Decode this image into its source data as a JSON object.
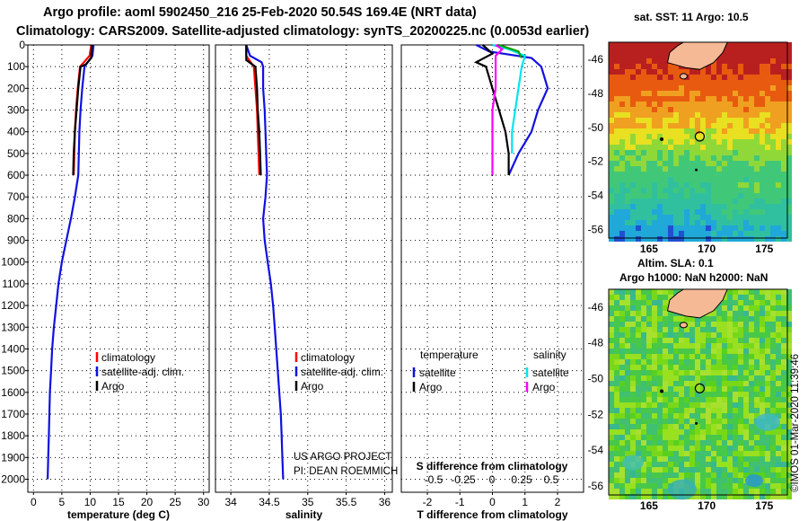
{
  "header": {
    "line1": "Argo profile: aoml 5902450_216 25-Feb-2020 50.54S 169.4E (NRT data)",
    "line2": "Climatology: CARS2009. Satellite-adjusted climatology: synTS_20200225.nc (0.0053d earlier)"
  },
  "colors": {
    "climatology": "#ff0000",
    "satellite": "#1010e0",
    "argo": "#000000",
    "sat_salinity": "#00e5ee",
    "argo_salinity": "#ff00ff",
    "land": "#f6b995"
  },
  "credit": "©IMOS 01-Mar-2020 11:39:46",
  "chart_data": [
    {
      "id": "temperature",
      "type": "line",
      "xlabel": "temperature (deg C)",
      "xlim": [
        -1,
        31
      ],
      "xticks": [
        "0",
        "5",
        "10",
        "15",
        "20",
        "25",
        "30"
      ],
      "xtick_values": [
        0,
        5,
        10,
        15,
        20,
        25,
        30
      ],
      "ylim": [
        0,
        2060
      ],
      "yticks": [
        "0",
        "100",
        "200",
        "300",
        "400",
        "500",
        "600",
        "700",
        "800",
        "900",
        "1000",
        "1100",
        "1200",
        "1300",
        "1400",
        "1500",
        "1600",
        "1700",
        "1800",
        "1900",
        "2000"
      ],
      "ytick_values": [
        0,
        100,
        200,
        300,
        400,
        500,
        600,
        700,
        800,
        900,
        1000,
        1100,
        1200,
        1300,
        1400,
        1500,
        1600,
        1700,
        1800,
        1900,
        2000
      ],
      "series": [
        {
          "name": "climatology",
          "color": "#ff0000",
          "points": [
            [
              10.2,
              0
            ],
            [
              9.9,
              50
            ],
            [
              8.2,
              100
            ],
            [
              7.8,
              200
            ],
            [
              7.5,
              300
            ],
            [
              7.3,
              400
            ],
            [
              7.2,
              500
            ],
            [
              7.1,
              600
            ]
          ]
        },
        {
          "name": "satellite-adj. clim.",
          "color": "#1010e0",
          "points": [
            [
              10.6,
              0
            ],
            [
              10.4,
              50
            ],
            [
              9.0,
              100
            ],
            [
              8.6,
              200
            ],
            [
              8.3,
              300
            ],
            [
              8.1,
              400
            ],
            [
              8.0,
              500
            ],
            [
              7.9,
              600
            ],
            [
              7.3,
              700
            ],
            [
              6.6,
              800
            ],
            [
              5.8,
              900
            ],
            [
              5.0,
              1000
            ],
            [
              4.4,
              1100
            ],
            [
              4.0,
              1200
            ],
            [
              3.6,
              1300
            ],
            [
              3.3,
              1400
            ],
            [
              3.1,
              1500
            ],
            [
              2.9,
              1600
            ],
            [
              2.8,
              1700
            ],
            [
              2.7,
              1800
            ],
            [
              2.6,
              1900
            ],
            [
              2.5,
              2000
            ]
          ]
        },
        {
          "name": "Argo",
          "color": "#000000",
          "points": [
            [
              10.3,
              0
            ],
            [
              10.2,
              60
            ],
            [
              9.2,
              90
            ],
            [
              8.3,
              100
            ],
            [
              7.9,
              200
            ],
            [
              7.6,
              300
            ],
            [
              7.3,
              400
            ],
            [
              7.1,
              500
            ],
            [
              7.0,
              600
            ]
          ]
        }
      ],
      "legend": {
        "position": "middle-right",
        "items": [
          {
            "label": "climatology",
            "color": "#ff0000"
          },
          {
            "label": "satellite-adj. clim.",
            "color": "#1010e0"
          },
          {
            "label": "Argo",
            "color": "#000000"
          }
        ]
      }
    },
    {
      "id": "salinity",
      "type": "line",
      "xlabel": "salinity",
      "xlim": [
        33.8,
        36.1
      ],
      "xticks": [
        "34",
        "34.5",
        "35",
        "35.5",
        "36"
      ],
      "xtick_values": [
        34,
        34.5,
        35,
        35.5,
        36
      ],
      "ylim": [
        0,
        2060
      ],
      "series": [
        {
          "name": "climatology",
          "color": "#ff0000",
          "points": [
            [
              34.2,
              0
            ],
            [
              34.2,
              50
            ],
            [
              34.3,
              100
            ],
            [
              34.32,
              200
            ],
            [
              34.34,
              300
            ],
            [
              34.35,
              400
            ],
            [
              34.36,
              500
            ],
            [
              34.37,
              600
            ]
          ]
        },
        {
          "name": "satellite-adj. clim.",
          "color": "#1010e0",
          "points": [
            [
              34.2,
              0
            ],
            [
              34.25,
              50
            ],
            [
              34.4,
              80
            ],
            [
              34.42,
              100
            ],
            [
              34.42,
              200
            ],
            [
              34.44,
              300
            ],
            [
              34.45,
              400
            ],
            [
              34.46,
              500
            ],
            [
              34.47,
              600
            ],
            [
              34.45,
              700
            ],
            [
              34.42,
              800
            ],
            [
              34.44,
              900
            ],
            [
              34.48,
              1000
            ],
            [
              34.52,
              1100
            ],
            [
              34.55,
              1200
            ],
            [
              34.57,
              1300
            ],
            [
              34.59,
              1400
            ],
            [
              34.61,
              1500
            ],
            [
              34.63,
              1600
            ],
            [
              34.65,
              1700
            ],
            [
              34.66,
              1800
            ],
            [
              34.67,
              1900
            ],
            [
              34.68,
              2000
            ]
          ]
        },
        {
          "name": "Argo",
          "color": "#000000",
          "points": [
            [
              34.2,
              0
            ],
            [
              34.2,
              70
            ],
            [
              34.32,
              100
            ],
            [
              34.34,
              200
            ],
            [
              34.35,
              300
            ],
            [
              34.37,
              400
            ],
            [
              34.38,
              500
            ],
            [
              34.39,
              600
            ]
          ]
        }
      ],
      "legend": {
        "position": "middle-right",
        "items": [
          {
            "label": "climatology",
            "color": "#ff0000"
          },
          {
            "label": "satellite-adj. clim.",
            "color": "#1010e0"
          },
          {
            "label": "Argo",
            "color": "#000000"
          }
        ]
      },
      "annotation_lines": [
        "US ARGO PROJECT",
        "PI: DEAN ROEMMICH"
      ]
    },
    {
      "id": "difference",
      "type": "line",
      "xlabel": "T difference from climatology",
      "xlabel_top": "S difference from climatology",
      "xlim": [
        -2.8,
        2.8
      ],
      "xticks": [
        "-2",
        "-1",
        "0",
        "1",
        "2"
      ],
      "xtick_values": [
        -2,
        -1,
        0,
        1,
        2
      ],
      "xticks_top": [
        "-0.5",
        "-0.25",
        "0",
        "0.25",
        "0.5"
      ],
      "xticks_top_values": [
        -0.5,
        -0.25,
        0,
        0.25,
        0.5
      ],
      "ylim": [
        0,
        2060
      ],
      "series": [
        {
          "name": "satellite (temperature)",
          "color": "#1010e0",
          "points": [
            [
              -0.5,
              0
            ],
            [
              -0.1,
              30
            ],
            [
              1.2,
              60
            ],
            [
              1.5,
              100
            ],
            [
              1.7,
              200
            ],
            [
              1.4,
              300
            ],
            [
              1.2,
              400
            ],
            [
              0.8,
              500
            ],
            [
              0.5,
              600
            ]
          ]
        },
        {
          "name": "Argo (temperature)",
          "color": "#000000",
          "points": [
            [
              -0.3,
              0
            ],
            [
              0.0,
              40
            ],
            [
              -0.5,
              80
            ],
            [
              -0.2,
              100
            ],
            [
              0.0,
              200
            ],
            [
              0.2,
              300
            ],
            [
              0.4,
              400
            ],
            [
              0.5,
              500
            ],
            [
              0.5,
              600
            ]
          ]
        },
        {
          "name": "satellite (salinity)",
          "color": "#00e5ee",
          "points": [
            [
              0.0,
              0
            ],
            [
              0.5,
              20
            ],
            [
              1.0,
              50
            ],
            [
              0.9,
              100
            ],
            [
              0.8,
              200
            ],
            [
              0.7,
              300
            ],
            [
              0.6,
              400
            ],
            [
              0.6,
              500
            ]
          ]
        },
        {
          "name": "Argo (salinity)",
          "color": "#ff00ff",
          "points": [
            [
              0.1,
              0
            ],
            [
              0.3,
              20
            ],
            [
              0.1,
              50
            ],
            [
              0.1,
              100
            ],
            [
              0.1,
              200
            ],
            [
              0.0,
              300
            ],
            [
              0.0,
              400
            ],
            [
              0.0,
              500
            ],
            [
              0.0,
              600
            ]
          ]
        },
        {
          "name": "Argo (salinity, green)",
          "color": "#00a000",
          "points": [
            [
              0.2,
              0
            ],
            [
              0.8,
              30
            ],
            [
              0.9,
              60
            ]
          ]
        }
      ],
      "legend": {
        "position": "middle",
        "headers": [
          "temperature",
          "salinity"
        ],
        "items": [
          {
            "label": "satellite",
            "color": "#1010e0",
            "column": "temperature"
          },
          {
            "label": "Argo",
            "color": "#000000",
            "column": "temperature"
          },
          {
            "label": "satellite",
            "color": "#00e5ee",
            "column": "salinity"
          },
          {
            "label": "Argo",
            "color": "#ff00ff",
            "column": "salinity"
          }
        ]
      }
    }
  ],
  "maps": [
    {
      "id": "sst-map",
      "title": "sat. SST: 11 Argo: 10.5",
      "type": "heatmap",
      "xticks": [
        "165",
        "170",
        "175"
      ],
      "xtick_values": [
        165,
        170,
        175
      ],
      "yticks": [
        "-46",
        "-48",
        "-50",
        "-52",
        "-54",
        "-56"
      ],
      "ytick_values": [
        -46,
        -48,
        -50,
        -52,
        -54,
        -56
      ],
      "lon_range": [
        161.5,
        177
      ],
      "lat_range": [
        -56.5,
        -45
      ],
      "float_location": [
        169.4,
        -50.54
      ]
    },
    {
      "id": "sla-map",
      "title_lines": [
        "Altim. SLA: 0.1",
        "Argo h1000: NaN h2000: NaN"
      ],
      "type": "heatmap",
      "xticks": [
        "165",
        "170",
        "175"
      ],
      "xtick_values": [
        165,
        170,
        175
      ],
      "yticks": [
        "-46",
        "-48",
        "-50",
        "-52",
        "-54",
        "-56"
      ],
      "ytick_values": [
        -46,
        -48,
        -50,
        -52,
        -54,
        -56
      ],
      "lon_range": [
        161.5,
        177
      ],
      "lat_range": [
        -56.5,
        -45
      ],
      "float_location": [
        169.4,
        -50.54
      ]
    }
  ]
}
